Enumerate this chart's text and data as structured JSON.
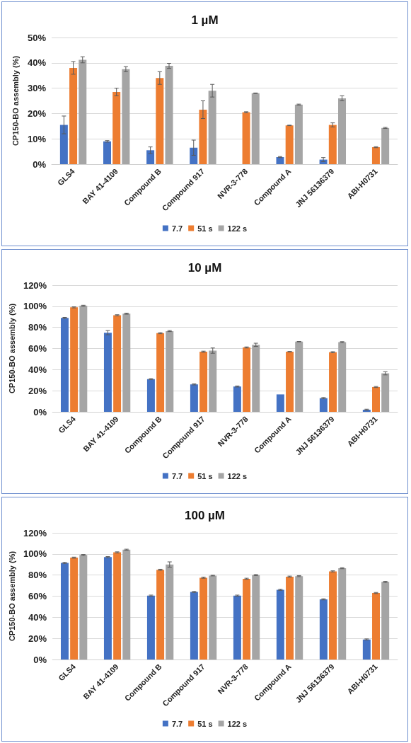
{
  "chart_data": [
    {
      "type": "bar",
      "title": "1 µM",
      "ylabel": "CP150-BO assembly (%)",
      "categories": [
        "GLS4",
        "BAY 41-4109",
        "Compound B",
        "Compound 917",
        "NVR-3-778",
        "Compound A",
        "JNJ 56136379",
        "ABI-H0731"
      ],
      "series": [
        {
          "name": "7.7",
          "color": "#4472c4",
          "values": [
            15.5,
            9,
            5.5,
            6.5,
            0,
            2.8,
            1.8,
            0
          ],
          "errors": [
            3.5,
            0.3,
            1.3,
            3,
            null,
            0.2,
            0.8,
            null
          ]
        },
        {
          "name": "51 s",
          "color": "#ed7d31",
          "values": [
            38,
            28.5,
            34,
            21.5,
            20.5,
            15.3,
            15.5,
            6.7
          ],
          "errors": [
            2.5,
            1.5,
            2.5,
            3.5,
            0.2,
            0.1,
            0.8,
            0.2
          ]
        },
        {
          "name": "122 s",
          "color": "#a5a5a5",
          "values": [
            41.2,
            37.5,
            38.8,
            29,
            28,
            23.5,
            26,
            14.3
          ],
          "errors": [
            1.2,
            1,
            1,
            2.5,
            0.1,
            0.2,
            1,
            0.2
          ]
        }
      ],
      "ylim": [
        0,
        50
      ],
      "yticks": [
        {
          "value": 0,
          "label": "0%"
        },
        {
          "value": 10,
          "label": "10%"
        },
        {
          "value": 20,
          "label": "20%"
        },
        {
          "value": 30,
          "label": "30%"
        },
        {
          "value": 40,
          "label": "40%"
        },
        {
          "value": 50,
          "label": "50%"
        }
      ],
      "grid": "y",
      "legend": "bottom"
    },
    {
      "type": "bar",
      "title": "10 µM",
      "ylabel": "CP150-BO assembly (%)",
      "categories": [
        "GLS4",
        "BAY 41-4109",
        "Compound B",
        "Compound 917",
        "NVR-3-778",
        "Compound A",
        "JNJ 56136379",
        "ABI-H0731"
      ],
      "series": [
        {
          "name": "7.7",
          "color": "#4472c4",
          "values": [
            89,
            75,
            31,
            26,
            24,
            16.5,
            13,
            2
          ],
          "errors": [
            0.5,
            2,
            0.5,
            0.5,
            0.5,
            null,
            0.5,
            0.5
          ]
        },
        {
          "name": "51 s",
          "color": "#ed7d31",
          "values": [
            99,
            91.5,
            74.5,
            57,
            61,
            57,
            56.5,
            23.5
          ],
          "errors": [
            0.5,
            0.5,
            0.5,
            0.5,
            0.5,
            0.2,
            0.5,
            0.5
          ]
        },
        {
          "name": "122 s",
          "color": "#a5a5a5",
          "values": [
            100.5,
            93,
            76.5,
            58,
            63.5,
            66.5,
            66,
            36.5
          ],
          "errors": [
            0.5,
            0.5,
            0.5,
            2.5,
            1.5,
            0.2,
            0.5,
            1.5
          ]
        }
      ],
      "ylim": [
        0,
        120
      ],
      "yticks": [
        {
          "value": 0,
          "label": "0%"
        },
        {
          "value": 20,
          "label": "20%"
        },
        {
          "value": 40,
          "label": "40%"
        },
        {
          "value": 60,
          "label": "60%"
        },
        {
          "value": 80,
          "label": "80%"
        },
        {
          "value": 100,
          "label": "100%"
        },
        {
          "value": 120,
          "label": "120%"
        }
      ],
      "grid": "y",
      "legend": "bottom"
    },
    {
      "type": "bar",
      "title": "100 µM",
      "ylabel": "CP150-BO assembly (%)",
      "categories": [
        "GLS4",
        "BAY 41-4109",
        "Compound B",
        "Compound 917",
        "NVR-3-778",
        "Compound A",
        "JNJ 56136379",
        "ABI-H0731"
      ],
      "series": [
        {
          "name": "7.7",
          "color": "#4472c4",
          "values": [
            91.5,
            97,
            60.5,
            64,
            60.5,
            66,
            57,
            19
          ],
          "errors": [
            0.5,
            0.5,
            0.5,
            0.5,
            0.5,
            0.5,
            0.5,
            0.5
          ]
        },
        {
          "name": "51 s",
          "color": "#ed7d31",
          "values": [
            96.5,
            101.5,
            85,
            77.5,
            76.5,
            78.5,
            83.5,
            63
          ],
          "errors": [
            0.5,
            0.5,
            0.5,
            0.5,
            0.5,
            0.5,
            0.5,
            0.5
          ]
        },
        {
          "name": "122 s",
          "color": "#a5a5a5",
          "values": [
            99,
            104,
            90,
            79.5,
            80,
            79,
            86.5,
            73.5
          ],
          "errors": [
            0.5,
            0.5,
            2.5,
            0.3,
            0.5,
            0.5,
            0.5,
            0.5
          ]
        }
      ],
      "ylim": [
        0,
        120
      ],
      "yticks": [
        {
          "value": 0,
          "label": "0%"
        },
        {
          "value": 20,
          "label": "20%"
        },
        {
          "value": 40,
          "label": "40%"
        },
        {
          "value": 60,
          "label": "60%"
        },
        {
          "value": 80,
          "label": "80%"
        },
        {
          "value": 100,
          "label": "100%"
        },
        {
          "value": 120,
          "label": "120%"
        }
      ],
      "grid": "y",
      "legend": "bottom"
    }
  ]
}
